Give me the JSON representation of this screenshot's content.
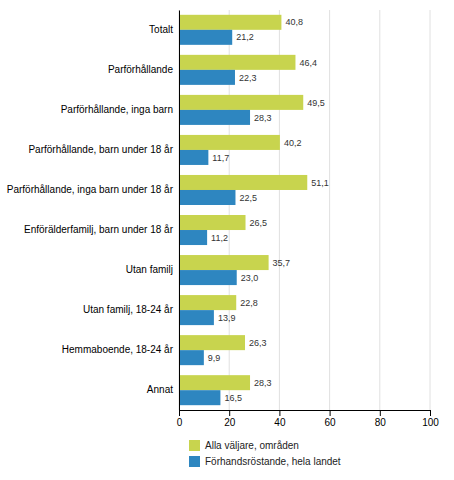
{
  "chart_data": {
    "type": "bar",
    "orientation": "horizontal",
    "categories": [
      "Totalt",
      "Parförhållande",
      "Parförhållande, inga barn",
      "Parförhållande, barn under 18 år",
      "Parförhållande, inga barn under 18 år",
      "Enförälderfamilj, barn under 18 år",
      "Utan familj",
      "Utan familj, 18-24 år",
      "Hemmaboende, 18-24 år",
      "Annat"
    ],
    "series": [
      {
        "name": "Alla väljare, områden",
        "color": "#c8d44e",
        "values": [
          40.8,
          46.4,
          49.5,
          40.2,
          51.1,
          26.5,
          35.7,
          22.8,
          26.3,
          28.3
        ],
        "value_labels": [
          "40,8",
          "46,4",
          "49,5",
          "40,2",
          "51,1",
          "26,5",
          "35,7",
          "22,8",
          "26,3",
          "28,3"
        ]
      },
      {
        "name": "Förhandsröstande, hela landet",
        "color": "#2e86c0",
        "values": [
          21.2,
          22.3,
          28.3,
          11.7,
          22.5,
          11.2,
          23.0,
          13.9,
          9.9,
          16.5
        ],
        "value_labels": [
          "21,2",
          "22,3",
          "28,3",
          "11,7",
          "22,5",
          "11,2",
          "23,0",
          "13,9",
          "9,9",
          "16,5"
        ]
      }
    ],
    "xlim": [
      0,
      100
    ],
    "xticks": [
      0,
      20,
      40,
      60,
      80,
      100
    ],
    "grid": true,
    "data_labels": true,
    "legend": "bottom"
  }
}
